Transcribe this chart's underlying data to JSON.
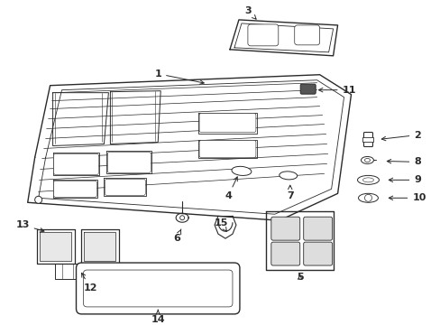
{
  "bg_color": "#ffffff",
  "line_color": "#2a2a2a",
  "figsize": [
    4.89,
    3.6
  ],
  "dpi": 100,
  "xlim": [
    0,
    489
  ],
  "ylim": [
    0,
    360
  ]
}
